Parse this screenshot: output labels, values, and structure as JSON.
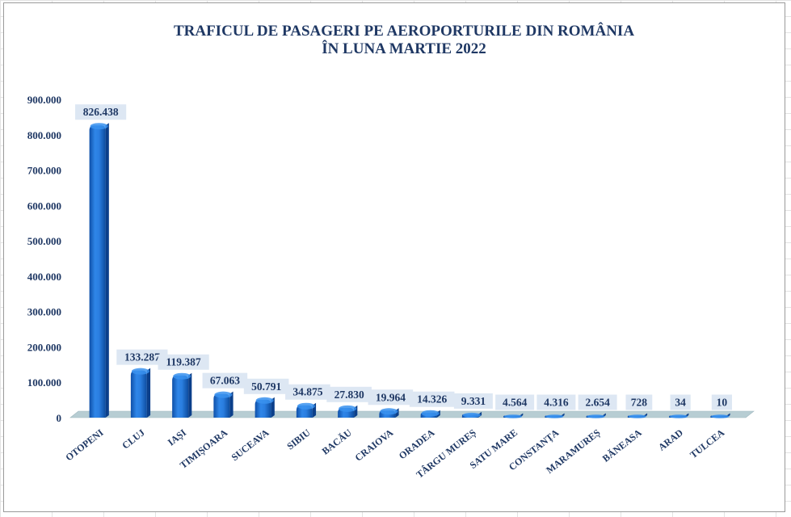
{
  "chart_data": {
    "type": "bar",
    "title_line1": "TRAFICUL DE PASAGERI PE AEROPORTURILE DIN ROMÂNIA",
    "title_line2": "ÎN LUNA MARTIE 2022",
    "categories": [
      "OTOPENI",
      "CLUJ",
      "IAȘI",
      "TIMIȘOARA",
      "SUCEAVA",
      "SIBIU",
      "BACĂU",
      "CRAIOVA",
      "ORADEA",
      "TÂRGU MUREȘ",
      "SATU MARE",
      "CONSTANȚA",
      "MARAMUREȘ",
      "BĂNEASA",
      "ARAD",
      "TULCEA"
    ],
    "values": [
      826438,
      133287,
      119387,
      67063,
      50791,
      34875,
      27830,
      19964,
      14326,
      9331,
      4564,
      4316,
      2654,
      728,
      34,
      10
    ],
    "value_labels": [
      "826.438",
      "133.287",
      "119.387",
      "67.063",
      "50.791",
      "34.875",
      "27.830",
      "19.964",
      "14.326",
      "9.331",
      "4.564",
      "4.316",
      "2.654",
      "728",
      "34",
      "10"
    ],
    "ylim": [
      0,
      900000
    ],
    "y_ticks": [
      "0",
      "100.000",
      "200.000",
      "300.000",
      "400.000",
      "500.000",
      "600.000",
      "700.000",
      "800.000",
      "900.000"
    ],
    "bar_color": "#1f6fd0",
    "bar_dark": "#0b3f8a",
    "floor_color": "#b7cdd3",
    "label_bg": "#dde7f3",
    "text_color": "#1f3864",
    "grid": false,
    "legend": "none"
  }
}
